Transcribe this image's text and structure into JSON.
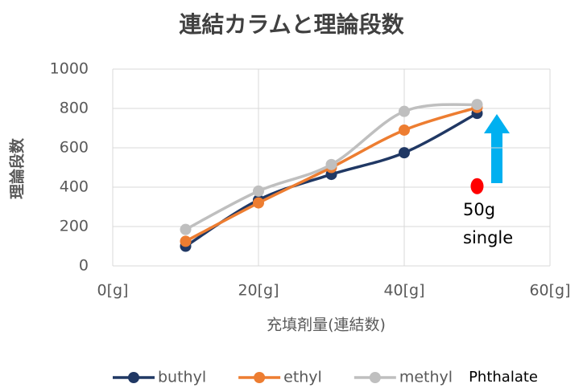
{
  "chart_data": {
    "type": "line",
    "title": "連結カラムと理論段数",
    "x_label": "充填剤量(連結数)",
    "y_label": "理論段数",
    "x": [
      10,
      20,
      30,
      40,
      50
    ],
    "series": [
      {
        "name": "buthyl",
        "color": "#203864",
        "values": [
          100,
          335,
          465,
          575,
          775
        ]
      },
      {
        "name": "ethyl",
        "color": "#ed7d31",
        "values": [
          125,
          320,
          500,
          690,
          805
        ]
      },
      {
        "name": "methyl",
        "color": "#bfbfbf",
        "values": [
          185,
          380,
          515,
          785,
          820
        ]
      }
    ],
    "single_point": {
      "x": 50,
      "value": 405,
      "color": "#ff0000"
    },
    "annotation": [
      "50g",
      "single"
    ],
    "legend_note": "Phthalate",
    "xlim": [
      0,
      60
    ],
    "xticks": [
      {
        "value": 0,
        "label": "0[g]"
      },
      {
        "value": 20,
        "label": "20[g]"
      },
      {
        "value": 40,
        "label": "40[g]"
      },
      {
        "value": 60,
        "label": "60[g]"
      }
    ],
    "ylim": [
      0,
      1000
    ],
    "yticks": [
      0,
      200,
      400,
      600,
      800,
      1000
    ],
    "grid": true,
    "smooth": true,
    "legend": "bottom"
  }
}
